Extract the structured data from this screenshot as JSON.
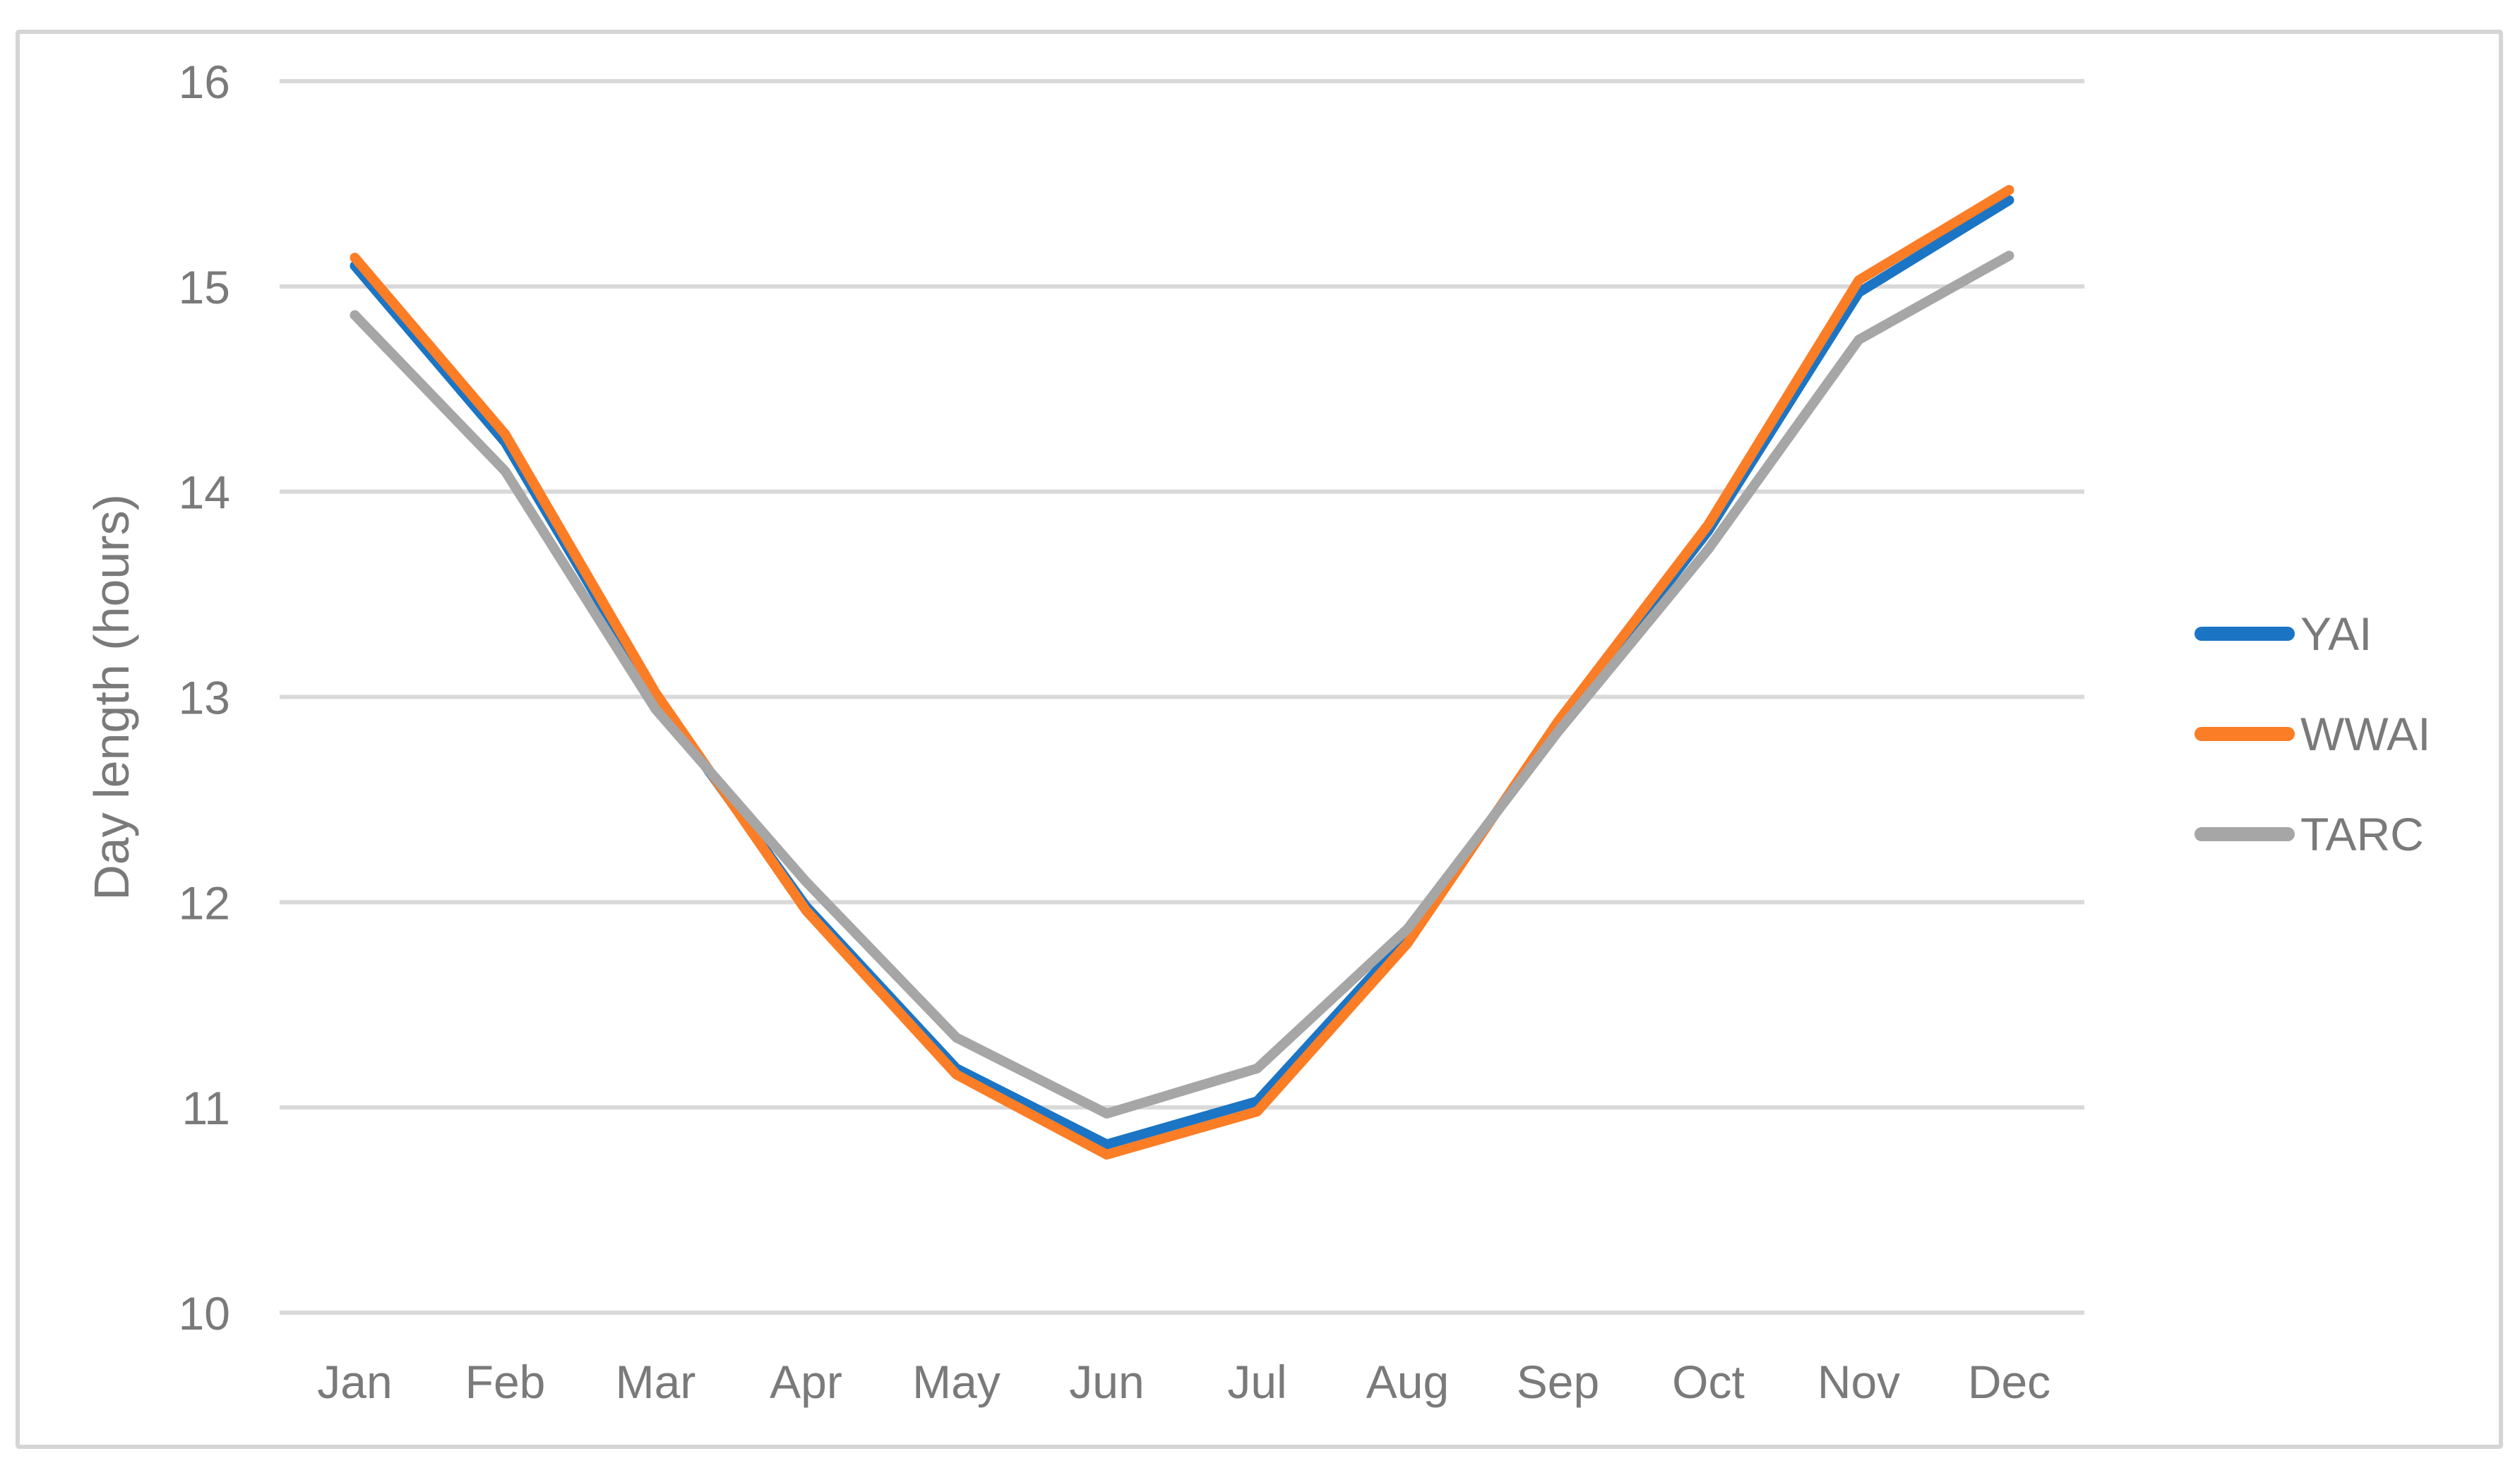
{
  "chart_data": {
    "type": "line",
    "title": "",
    "xlabel": "",
    "ylabel": "Day length (hours)",
    "categories": [
      "Jan",
      "Feb",
      "Mar",
      "Apr",
      "May",
      "Jun",
      "Jul",
      "Aug",
      "Sep",
      "Oct",
      "Nov",
      "Dec"
    ],
    "series": [
      {
        "name": "YAI",
        "color": "#1B75C4",
        "values": [
          15.1,
          14.24,
          13.0,
          11.98,
          11.19,
          10.82,
          11.03,
          11.83,
          12.86,
          13.81,
          14.97,
          15.42
        ]
      },
      {
        "name": "WWAI",
        "color": "#FB7D26",
        "values": [
          15.14,
          14.28,
          13.02,
          11.96,
          11.16,
          10.77,
          10.98,
          11.8,
          12.88,
          13.84,
          15.03,
          15.47
        ]
      },
      {
        "name": "TARC",
        "color": "#A6A6A6",
        "values": [
          14.86,
          14.1,
          12.94,
          12.1,
          11.34,
          10.97,
          11.19,
          11.87,
          12.83,
          13.72,
          14.74,
          15.15
        ]
      }
    ],
    "ylim": [
      10,
      16
    ],
    "ytick_step": 1,
    "yticks": [
      "10",
      "11",
      "12",
      "13",
      "14",
      "15",
      "16"
    ],
    "grid": "horizontal",
    "gridline_color": "#D9D9D9",
    "axis_text_color": "#7A7A7A",
    "figure_border_color": "#D5D5D5",
    "background_color": "#FFFFFF",
    "legend_position": "right",
    "legend_labels": [
      "YAI",
      "WWAI",
      "TARC"
    ]
  }
}
